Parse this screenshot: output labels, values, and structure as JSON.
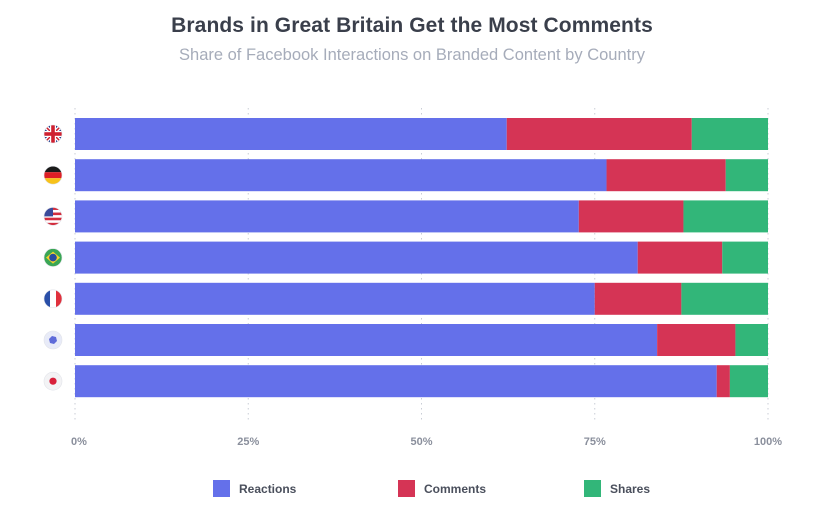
{
  "title": "Brands in Great Britain Get the Most Comments",
  "subtitle": "Share of Facebook Interactions on Branded Content by Country",
  "chart_data": {
    "type": "bar",
    "orientation": "horizontal",
    "stacked": true,
    "title": "Brands in Great Britain Get the Most Comments",
    "subtitle": "Share of Facebook Interactions on Branded Content by Country",
    "categories": [
      "united-kingdom-flag",
      "germany-flag",
      "united-states-flag",
      "brazil-flag",
      "france-flag",
      "asia-pacific-map",
      "japan-flag"
    ],
    "series": [
      {
        "name": "Reactions",
        "color": "#6470ea",
        "values": [
          62.3,
          76.7,
          72.7,
          81.2,
          75.0,
          84.0,
          92.6
        ]
      },
      {
        "name": "Comments",
        "color": "#d53455",
        "values": [
          26.7,
          17.2,
          15.1,
          12.2,
          12.5,
          11.3,
          1.9
        ]
      },
      {
        "name": "Shares",
        "color": "#32b679",
        "values": [
          11.0,
          6.1,
          12.2,
          6.6,
          12.5,
          4.7,
          5.5
        ]
      }
    ],
    "xlim": [
      0,
      100
    ],
    "xticks": [
      "0%",
      "25%",
      "50%",
      "75%",
      "100%"
    ],
    "grid": "vertical-dotted",
    "legend": "bottom"
  }
}
